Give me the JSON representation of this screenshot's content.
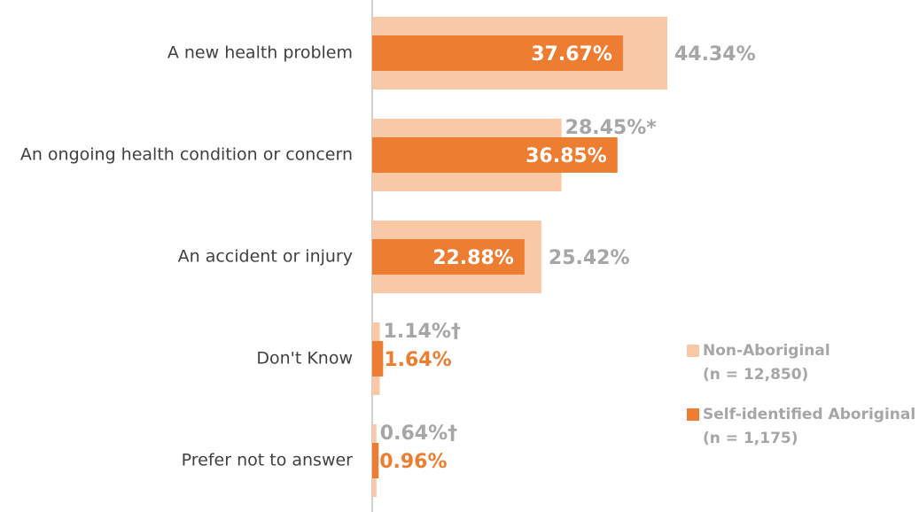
{
  "chart_data": {
    "type": "bar",
    "orientation": "horizontal",
    "categories": [
      "A new health problem",
      "An ongoing health condition or concern",
      "An accident or injury",
      "Don't Know",
      "Prefer not to answer"
    ],
    "series": [
      {
        "name": "Non-Aboriginal",
        "sample": "(n = 12,850)",
        "color": "#f9c9a7",
        "label_color": "#a6a6a6",
        "values": [
          44.34,
          28.45,
          25.42,
          1.14,
          0.64
        ],
        "value_labels": [
          "44.34%",
          "28.45%*",
          "25.42%",
          "1.14%†",
          "0.64%†"
        ]
      },
      {
        "name": "Self-identified Aboriginal",
        "sample": "(n = 1,175)",
        "color": "#ed7d31",
        "label_color": "#ed7d31",
        "values": [
          37.67,
          36.85,
          22.88,
          1.64,
          0.96
        ],
        "value_labels": [
          "37.67%",
          "36.85%",
          "22.88%",
          "1.64%",
          "0.96%"
        ]
      }
    ],
    "legend": "right"
  }
}
